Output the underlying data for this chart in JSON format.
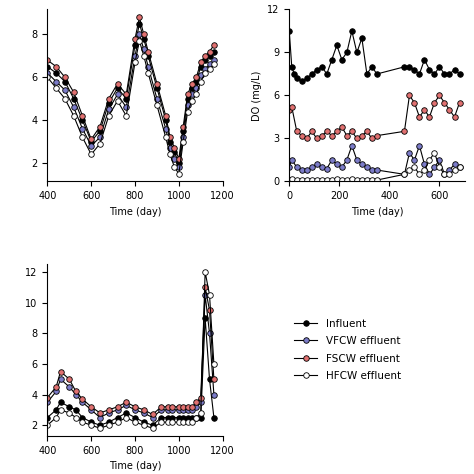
{
  "legend_labels": [
    "Influent",
    "VFCW effluent",
    "FSCW effluent",
    "HFCW effluent"
  ],
  "colors": [
    "black",
    "#7b7bc8",
    "#e07070",
    "white"
  ],
  "top_left": {
    "xlabel": "Time (day)",
    "xlim": [
      400,
      1200
    ],
    "xticks": [
      400,
      600,
      800,
      1000,
      1200
    ],
    "influent_x": [
      400,
      440,
      480,
      520,
      560,
      600,
      640,
      680,
      720,
      760,
      800,
      820,
      840,
      860,
      900,
      940,
      960,
      980,
      1000,
      1020,
      1040,
      1060,
      1080,
      1100,
      1120,
      1140,
      1160
    ],
    "influent_y": [
      6.5,
      6.2,
      5.8,
      5.0,
      4.0,
      3.0,
      3.5,
      4.8,
      5.5,
      5.0,
      7.5,
      8.5,
      7.8,
      7.0,
      5.5,
      4.0,
      3.0,
      2.5,
      2.0,
      3.5,
      5.0,
      5.5,
      5.8,
      6.5,
      6.8,
      7.0,
      7.2
    ],
    "vfcw_x": [
      400,
      440,
      480,
      520,
      560,
      600,
      640,
      680,
      720,
      760,
      800,
      820,
      840,
      860,
      900,
      940,
      960,
      980,
      1000,
      1020,
      1040,
      1060,
      1080,
      1100,
      1120,
      1140,
      1160
    ],
    "vfcw_y": [
      6.2,
      5.8,
      5.4,
      4.6,
      3.6,
      2.8,
      3.2,
      4.5,
      5.2,
      4.6,
      7.0,
      8.0,
      7.3,
      6.5,
      5.0,
      3.6,
      2.7,
      2.2,
      1.8,
      3.2,
      4.7,
      5.2,
      5.5,
      6.1,
      6.4,
      6.6,
      6.8
    ],
    "fscw_x": [
      400,
      440,
      480,
      520,
      560,
      600,
      640,
      680,
      720,
      760,
      800,
      820,
      840,
      860,
      900,
      940,
      960,
      980,
      1000,
      1020,
      1040,
      1060,
      1080,
      1100,
      1120,
      1140,
      1160
    ],
    "fscw_y": [
      6.8,
      6.5,
      6.0,
      5.3,
      4.2,
      3.1,
      3.7,
      5.0,
      5.7,
      5.2,
      7.8,
      8.8,
      8.0,
      7.2,
      5.7,
      4.2,
      3.2,
      2.7,
      2.2,
      3.7,
      5.2,
      5.7,
      6.0,
      6.7,
      7.0,
      7.2,
      7.5
    ],
    "hfcw_x": [
      400,
      440,
      480,
      520,
      560,
      600,
      640,
      680,
      720,
      760,
      800,
      820,
      840,
      860,
      900,
      940,
      960,
      980,
      1000,
      1020,
      1040,
      1060,
      1080,
      1100,
      1120,
      1140,
      1160
    ],
    "hfcw_y": [
      6.0,
      5.5,
      5.0,
      4.2,
      3.2,
      2.4,
      2.9,
      4.2,
      4.9,
      4.2,
      6.7,
      7.7,
      7.0,
      6.2,
      4.7,
      3.2,
      2.4,
      1.8,
      1.5,
      3.0,
      4.4,
      4.9,
      5.2,
      5.8,
      6.2,
      6.4,
      6.6
    ]
  },
  "top_right": {
    "xlabel": "Time (day)",
    "ylabel": "DO (mg/L)",
    "xlim": [
      0,
      700
    ],
    "xticks": [
      0,
      200,
      400,
      600
    ],
    "ylim": [
      0,
      12
    ],
    "yticks": [
      0,
      3,
      6,
      9,
      12
    ],
    "influent_x": [
      0,
      10,
      20,
      30,
      50,
      70,
      90,
      110,
      130,
      150,
      170,
      190,
      210,
      230,
      250,
      270,
      290,
      310,
      330,
      350,
      460,
      480,
      500,
      520,
      540,
      560,
      580,
      600,
      620,
      640,
      660,
      680
    ],
    "influent_y": [
      10.5,
      8.0,
      7.5,
      7.2,
      7.0,
      7.2,
      7.5,
      7.8,
      8.0,
      7.5,
      8.5,
      9.5,
      8.5,
      9.0,
      10.5,
      9.0,
      10.0,
      7.5,
      8.0,
      7.5,
      8.0,
      8.0,
      7.8,
      7.5,
      8.5,
      7.8,
      7.5,
      8.0,
      7.5,
      7.5,
      7.8,
      7.5
    ],
    "vfcw_x": [
      0,
      10,
      30,
      50,
      70,
      90,
      110,
      130,
      150,
      170,
      190,
      210,
      230,
      250,
      270,
      290,
      310,
      330,
      350,
      460,
      480,
      500,
      520,
      540,
      560,
      580,
      600,
      620,
      640,
      660,
      680
    ],
    "vfcw_y": [
      1.0,
      1.5,
      1.0,
      0.8,
      0.8,
      1.0,
      1.2,
      1.0,
      0.9,
      1.5,
      1.2,
      1.0,
      1.5,
      2.5,
      1.5,
      1.2,
      1.0,
      0.8,
      0.8,
      0.5,
      2.0,
      1.5,
      2.5,
      1.2,
      0.5,
      1.0,
      1.5,
      0.5,
      0.8,
      1.2,
      1.0
    ],
    "fscw_x": [
      0,
      10,
      30,
      50,
      70,
      90,
      110,
      130,
      150,
      170,
      190,
      210,
      230,
      250,
      270,
      290,
      310,
      330,
      350,
      460,
      480,
      500,
      520,
      540,
      560,
      580,
      600,
      620,
      640,
      660,
      680
    ],
    "fscw_y": [
      5.0,
      5.2,
      3.5,
      3.2,
      3.0,
      3.5,
      3.0,
      3.2,
      3.5,
      3.2,
      3.5,
      3.8,
      3.2,
      3.5,
      3.0,
      3.2,
      3.5,
      3.0,
      3.2,
      3.5,
      6.0,
      5.5,
      4.5,
      5.0,
      4.5,
      5.5,
      6.0,
      5.5,
      5.0,
      4.5,
      5.5
    ],
    "hfcw_x": [
      0,
      10,
      30,
      50,
      70,
      90,
      110,
      130,
      150,
      170,
      190,
      210,
      230,
      250,
      270,
      290,
      310,
      330,
      350,
      460,
      480,
      500,
      520,
      540,
      560,
      580,
      600,
      620,
      640,
      660,
      680
    ],
    "hfcw_y": [
      0.1,
      0.2,
      0.1,
      0.1,
      0.1,
      0.1,
      0.1,
      0.1,
      0.1,
      0.1,
      0.2,
      0.1,
      0.1,
      0.2,
      0.1,
      0.1,
      0.1,
      0.1,
      0.1,
      0.5,
      0.8,
      1.0,
      0.5,
      0.8,
      1.5,
      2.0,
      1.0,
      0.5,
      0.5,
      0.8,
      1.0
    ]
  },
  "bottom_left": {
    "xlabel": "Time (day)",
    "xlim": [
      400,
      1200
    ],
    "xticks": [
      400,
      600,
      800,
      1000,
      1200
    ],
    "influent_x": [
      400,
      440,
      460,
      500,
      530,
      560,
      600,
      640,
      680,
      720,
      760,
      800,
      840,
      880,
      920,
      950,
      970,
      1000,
      1020,
      1040,
      1060,
      1080,
      1100,
      1120,
      1140,
      1160
    ],
    "influent_y": [
      2.5,
      3.0,
      3.5,
      3.2,
      3.0,
      2.5,
      2.2,
      2.0,
      2.2,
      2.5,
      2.8,
      2.5,
      2.2,
      2.0,
      2.5,
      2.5,
      2.5,
      2.5,
      2.5,
      2.5,
      2.5,
      2.5,
      2.5,
      9.0,
      5.0,
      2.5
    ],
    "vfcw_x": [
      400,
      440,
      460,
      500,
      530,
      560,
      600,
      640,
      680,
      720,
      760,
      800,
      840,
      880,
      920,
      950,
      970,
      1000,
      1020,
      1040,
      1060,
      1080,
      1100,
      1120,
      1140,
      1160
    ],
    "vfcw_y": [
      3.5,
      4.2,
      5.0,
      4.5,
      4.0,
      3.5,
      3.0,
      2.5,
      2.8,
      3.0,
      3.3,
      3.0,
      2.8,
      2.5,
      3.0,
      3.0,
      3.0,
      3.0,
      3.0,
      3.0,
      3.0,
      3.2,
      3.5,
      10.5,
      8.0,
      4.0
    ],
    "fscw_x": [
      400,
      440,
      460,
      500,
      530,
      560,
      600,
      640,
      680,
      720,
      760,
      800,
      840,
      880,
      920,
      950,
      970,
      1000,
      1020,
      1040,
      1060,
      1080,
      1100,
      1120,
      1140,
      1160
    ],
    "fscw_y": [
      3.8,
      4.5,
      5.5,
      5.0,
      4.2,
      3.7,
      3.2,
      2.8,
      3.0,
      3.2,
      3.5,
      3.2,
      3.0,
      2.7,
      3.2,
      3.2,
      3.2,
      3.2,
      3.2,
      3.2,
      3.2,
      3.5,
      3.8,
      11.0,
      9.5,
      5.0
    ],
    "hfcw_x": [
      400,
      440,
      460,
      500,
      530,
      560,
      600,
      640,
      680,
      720,
      760,
      800,
      840,
      880,
      920,
      950,
      970,
      1000,
      1020,
      1040,
      1060,
      1080,
      1100,
      1120,
      1140,
      1160
    ],
    "hfcw_y": [
      2.0,
      2.5,
      3.0,
      2.8,
      2.5,
      2.2,
      2.0,
      1.8,
      2.0,
      2.2,
      2.5,
      2.2,
      2.0,
      1.8,
      2.2,
      2.2,
      2.2,
      2.2,
      2.2,
      2.2,
      2.2,
      2.5,
      2.8,
      12.0,
      10.5,
      6.0
    ]
  }
}
